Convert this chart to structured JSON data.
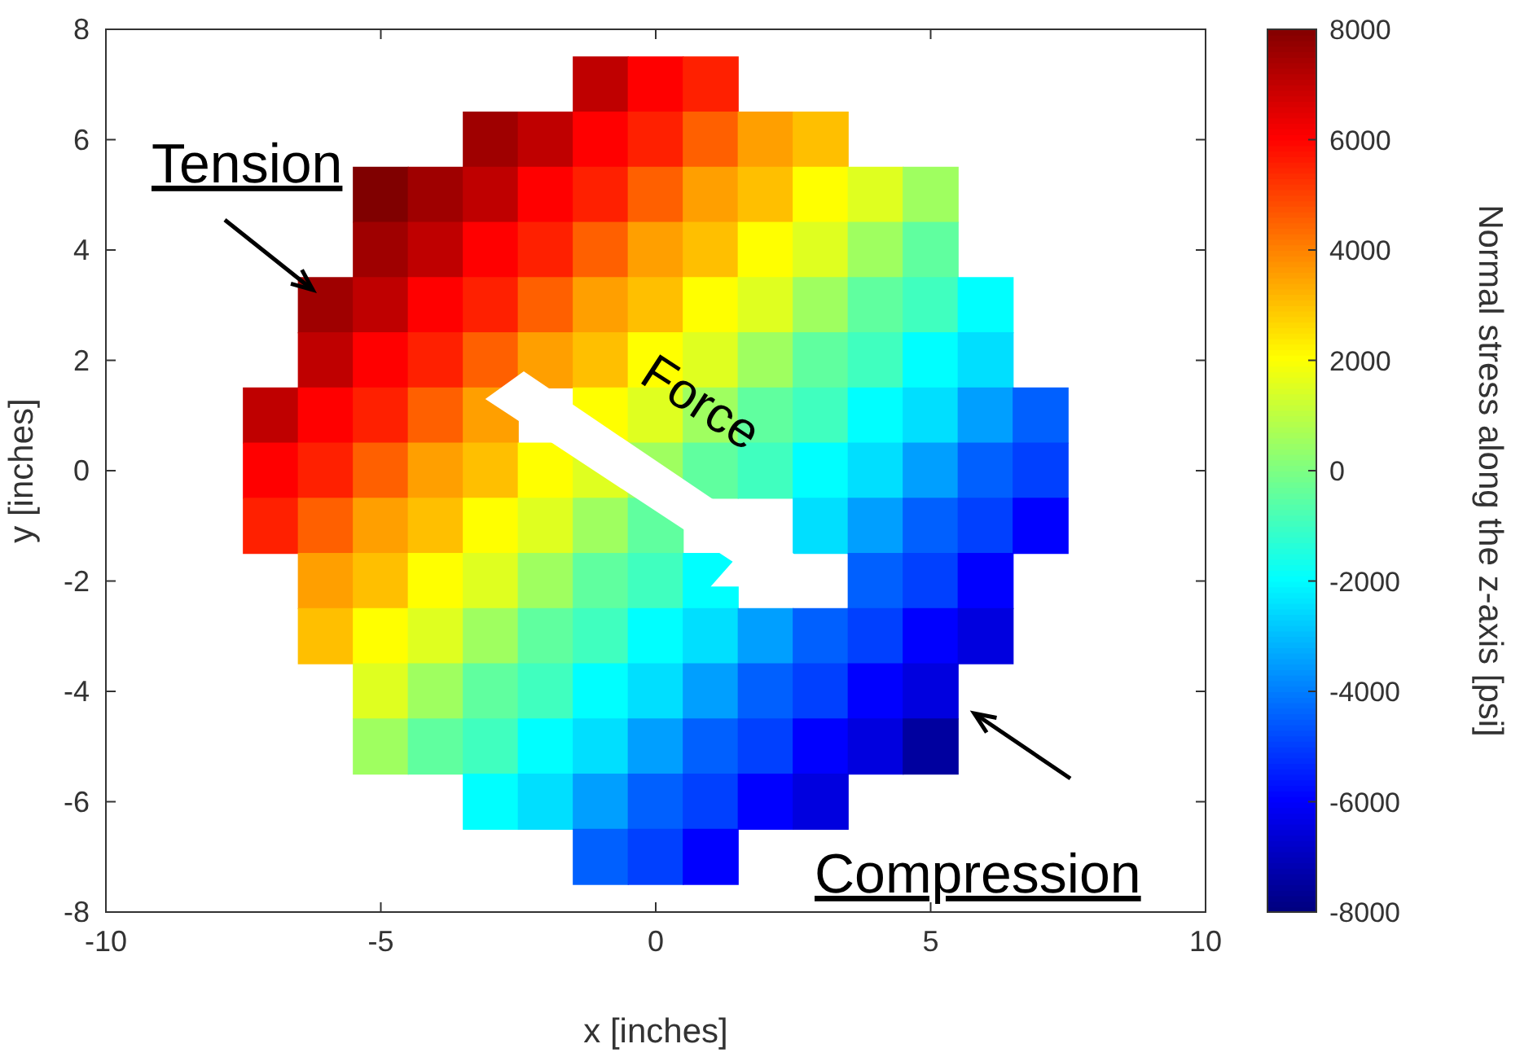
{
  "chart_data": {
    "type": "scatter",
    "marker": "square",
    "xlabel": "x [inches]",
    "ylabel": "y [inches]",
    "clabel": "Normal stress along the z-axis [psi]",
    "xlim": [
      -10,
      10
    ],
    "xticks": [
      -10,
      -5,
      0,
      5,
      10
    ],
    "ylim": [
      -8,
      8
    ],
    "yticks": [
      -8,
      -6,
      -4,
      -2,
      0,
      2,
      4,
      6,
      8
    ],
    "clim": [
      -8000,
      8000
    ],
    "cticks": [
      -8000,
      -6000,
      -4000,
      -2000,
      0,
      2000,
      4000,
      6000,
      8000
    ],
    "grid": false,
    "x": [
      -1,
      0,
      1,
      -3,
      -2,
      -1,
      0,
      1,
      2,
      3,
      -5,
      -4,
      -3,
      -2,
      -1,
      0,
      1,
      2,
      3,
      4,
      5,
      -5,
      -4,
      -3,
      -2,
      -1,
      0,
      1,
      2,
      3,
      4,
      5,
      -6,
      -5,
      -4,
      -3,
      -2,
      -1,
      0,
      1,
      2,
      3,
      4,
      5,
      6,
      -6,
      -5,
      -4,
      -3,
      -2,
      -1,
      0,
      1,
      2,
      3,
      4,
      5,
      6,
      -7,
      -6,
      -5,
      -4,
      -3,
      -1,
      0,
      1,
      2,
      3,
      4,
      5,
      6,
      7,
      -7,
      -6,
      -5,
      -4,
      -3,
      -2,
      -1,
      0,
      1,
      2,
      3,
      4,
      5,
      6,
      7,
      -7,
      -6,
      -5,
      -4,
      -3,
      -2,
      -1,
      0,
      3,
      4,
      5,
      6,
      7,
      -6,
      -5,
      -4,
      -3,
      -2,
      -1,
      0,
      1,
      4,
      5,
      6,
      -6,
      -5,
      -4,
      -3,
      -2,
      -1,
      0,
      1,
      2,
      3,
      4,
      5,
      6,
      -5,
      -4,
      -3,
      -2,
      -1,
      0,
      1,
      2,
      3,
      4,
      5,
      -5,
      -4,
      -3,
      -2,
      -1,
      0,
      1,
      2,
      3,
      4,
      5,
      -3,
      -2,
      -1,
      0,
      1,
      2,
      3,
      -1,
      0,
      1
    ],
    "values": [
      7,
      7,
      7,
      6,
      6,
      6,
      6,
      6,
      6,
      6,
      5,
      5,
      5,
      5,
      5,
      5,
      5,
      5,
      5,
      5,
      5,
      4,
      4,
      4,
      4,
      4,
      4,
      4,
      4,
      4,
      4,
      4,
      3,
      3,
      3,
      3,
      3,
      3,
      3,
      3,
      3,
      3,
      3,
      3,
      3,
      2,
      2,
      2,
      2,
      2,
      2,
      2,
      2,
      2,
      2,
      2,
      2,
      2,
      1,
      1,
      1,
      1,
      1,
      1,
      1,
      1,
      1,
      1,
      1,
      1,
      1,
      1,
      0,
      0,
      0,
      0,
      0,
      0,
      0,
      0,
      0,
      0,
      0,
      0,
      0,
      0,
      0,
      -1,
      -1,
      -1,
      -1,
      -1,
      -1,
      -1,
      -1,
      -1,
      -1,
      -1,
      -1,
      -1,
      -2,
      -2,
      -2,
      -2,
      -2,
      -2,
      -2,
      -2,
      -2,
      -2,
      -2,
      -3,
      -3,
      -3,
      -3,
      -3,
      -3,
      -3,
      -3,
      -3,
      -3,
      -3,
      -3,
      -3,
      -4,
      -4,
      -4,
      -4,
      -4,
      -4,
      -4,
      -4,
      -4,
      -4,
      -4,
      -5,
      -5,
      -5,
      -5,
      -5,
      -5,
      -5,
      -5,
      -5,
      -5,
      -5,
      -6,
      -6,
      -6,
      -6,
      -6,
      -6,
      -6,
      -7,
      -7,
      -7
    ],
    "cvalues": [
      7000,
      6000,
      5500,
      7500,
      7000,
      6000,
      5500,
      4500,
      3500,
      3000,
      8000,
      7500,
      7000,
      6000,
      5500,
      4500,
      3500,
      3000,
      2000,
      1500,
      500,
      7500,
      7000,
      6000,
      5500,
      4500,
      3500,
      3000,
      2000,
      1500,
      500,
      -500,
      7500,
      7000,
      6000,
      5500,
      4500,
      3500,
      3000,
      2000,
      1500,
      500,
      -500,
      -1000,
      -2000,
      7000,
      6000,
      5500,
      4500,
      3500,
      3000,
      2000,
      1500,
      500,
      -500,
      -1000,
      -2000,
      -2500,
      7000,
      6000,
      5500,
      4500,
      3500,
      2000,
      1500,
      500,
      -500,
      -1000,
      -2000,
      -2500,
      -3500,
      -4500,
      6000,
      5500,
      4500,
      3500,
      3000,
      2000,
      1500,
      500,
      -500,
      -1000,
      -2000,
      -2500,
      -3500,
      -4500,
      -5000,
      5500,
      4500,
      3500,
      3000,
      2000,
      1500,
      500,
      -500,
      -2500,
      -3500,
      -4500,
      -5000,
      -6000,
      3500,
      3000,
      2000,
      1500,
      500,
      -500,
      -1000,
      -2000,
      -4500,
      -5000,
      -6000,
      3000,
      2000,
      1500,
      500,
      -500,
      -1000,
      -2000,
      -2500,
      -3500,
      -4500,
      -5000,
      -6000,
      -6500,
      1500,
      500,
      -500,
      -1000,
      -2000,
      -2500,
      -3500,
      -4500,
      -5000,
      -6000,
      -6500,
      500,
      -500,
      -1000,
      -2000,
      -2500,
      -3500,
      -4500,
      -5000,
      -6000,
      -6500,
      -7500,
      -2000,
      -2500,
      -3500,
      -4500,
      -5000,
      -6000,
      -6500,
      -4500,
      -5000,
      -6000
    ],
    "annotations": [
      "Tension",
      "Compression",
      "Force"
    ]
  }
}
